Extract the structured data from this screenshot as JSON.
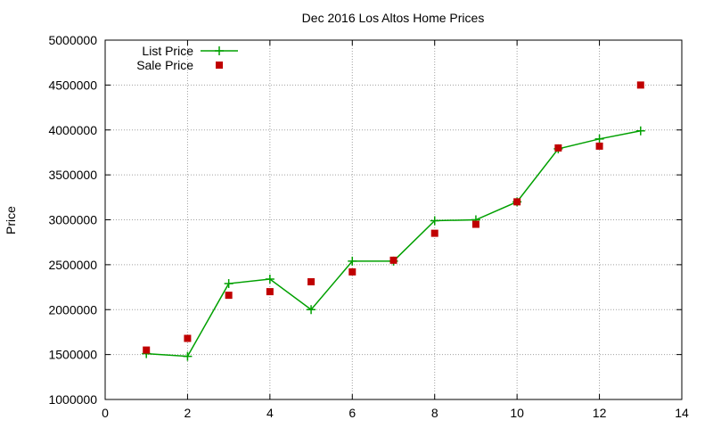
{
  "chart_data": {
    "type": "line",
    "title": "Dec 2016 Los Altos Home Prices",
    "xlabel": "",
    "ylabel": "Price",
    "xlim": [
      0,
      14
    ],
    "ylim": [
      1000000,
      5000000
    ],
    "x_ticks": [
      "0",
      "2",
      "4",
      "6",
      "8",
      "10",
      "12",
      "14"
    ],
    "y_ticks": [
      "1000000",
      "1500000",
      "2000000",
      "2500000",
      "3000000",
      "3500000",
      "4000000",
      "4500000",
      "5000000"
    ],
    "grid": true,
    "legend_position": "top-left",
    "series": [
      {
        "name": "List Price",
        "style": "line-with-plus-markers",
        "color": "#00a000",
        "x": [
          1,
          2,
          3,
          4,
          5,
          6,
          7,
          8,
          9,
          10,
          11,
          12,
          13
        ],
        "y": [
          1510000,
          1480000,
          2290000,
          2340000,
          2000000,
          2540000,
          2540000,
          2990000,
          3000000,
          3200000,
          3790000,
          3900000,
          3990000
        ]
      },
      {
        "name": "Sale Price",
        "style": "square-markers",
        "color": "#c00000",
        "x": [
          1,
          2,
          3,
          4,
          5,
          6,
          7,
          8,
          9,
          10,
          11,
          12,
          13
        ],
        "y": [
          1550000,
          1680000,
          2160000,
          2200000,
          2310000,
          2420000,
          2550000,
          2850000,
          2950000,
          3200000,
          3800000,
          3820000,
          4500000
        ]
      }
    ]
  }
}
